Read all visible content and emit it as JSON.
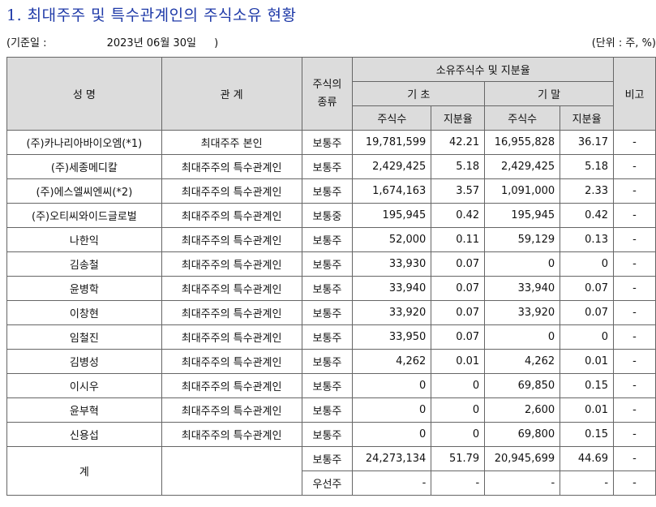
{
  "title": "1. 최대주주 및 특수관계인의 주식소유 현황",
  "base_label": "(기준일 :",
  "base_date": "2023년 06월 30일",
  "base_close": ")",
  "unit": "(단위 : 주, %)",
  "headers": {
    "name": "성 명",
    "relation": "관 계",
    "stock_type": "주식의\n종류",
    "holdings": "소유주식수 및 지분율",
    "begin": "기 초",
    "end": "기 말",
    "shares": "주식수",
    "ratio": "지분율",
    "note": "비고"
  },
  "rows": [
    {
      "name": "(주)카나리아바이오엠(*1)",
      "relation": "최대주주 본인",
      "type": "보통주",
      "b_shares": "19,781,599",
      "b_ratio": "42.21",
      "e_shares": "16,955,828",
      "e_ratio": "36.17",
      "note": "-"
    },
    {
      "name": "(주)세종메디칼",
      "relation": "최대주주의 특수관계인",
      "type": "보통주",
      "b_shares": "2,429,425",
      "b_ratio": "5.18",
      "e_shares": "2,429,425",
      "e_ratio": "5.18",
      "note": "-"
    },
    {
      "name": "(주)에스엘씨엔씨(*2)",
      "relation": "최대주주의 특수관계인",
      "type": "보통주",
      "b_shares": "1,674,163",
      "b_ratio": "3.57",
      "e_shares": "1,091,000",
      "e_ratio": "2.33",
      "note": "-"
    },
    {
      "name": "(주)오티씨와이드글로벌",
      "relation": "최대주주의 특수관계인",
      "type": "보통중",
      "b_shares": "195,945",
      "b_ratio": "0.42",
      "e_shares": "195,945",
      "e_ratio": "0.42",
      "note": "-"
    },
    {
      "name": "나한익",
      "relation": "최대주주의 특수관계인",
      "type": "보통주",
      "b_shares": "52,000",
      "b_ratio": "0.11",
      "e_shares": "59,129",
      "e_ratio": "0.13",
      "note": "-"
    },
    {
      "name": "김송철",
      "relation": "최대주주의 특수관계인",
      "type": "보통주",
      "b_shares": "33,930",
      "b_ratio": "0.07",
      "e_shares": "0",
      "e_ratio": "0",
      "note": "-"
    },
    {
      "name": "윤병학",
      "relation": "최대주주의 특수관계인",
      "type": "보통주",
      "b_shares": "33,940",
      "b_ratio": "0.07",
      "e_shares": "33,940",
      "e_ratio": "0.07",
      "note": "-"
    },
    {
      "name": "이창현",
      "relation": "최대주주의 특수관계인",
      "type": "보통주",
      "b_shares": "33,920",
      "b_ratio": "0.07",
      "e_shares": "33,920",
      "e_ratio": "0.07",
      "note": "-"
    },
    {
      "name": "임철진",
      "relation": "최대주주의 특수관계인",
      "type": "보통주",
      "b_shares": "33,950",
      "b_ratio": "0.07",
      "e_shares": "0",
      "e_ratio": "0",
      "note": "-"
    },
    {
      "name": "김병성",
      "relation": "최대주주의 특수관계인",
      "type": "보통주",
      "b_shares": "4,262",
      "b_ratio": "0.01",
      "e_shares": "4,262",
      "e_ratio": "0.01",
      "note": "-"
    },
    {
      "name": "이시우",
      "relation": "최대주주의 특수관계인",
      "type": "보통주",
      "b_shares": "0",
      "b_ratio": "0",
      "e_shares": "69,850",
      "e_ratio": "0.15",
      "note": "-"
    },
    {
      "name": "윤부혁",
      "relation": "최대주주의 특수관계인",
      "type": "보통주",
      "b_shares": "0",
      "b_ratio": "0",
      "e_shares": "2,600",
      "e_ratio": "0.01",
      "note": "-"
    },
    {
      "name": "신용섭",
      "relation": "최대주주의 특수관계인",
      "type": "보통주",
      "b_shares": "0",
      "b_ratio": "0",
      "e_shares": "69,800",
      "e_ratio": "0.15",
      "note": "-"
    }
  ],
  "total": {
    "label": "계",
    "rows": [
      {
        "type": "보통주",
        "b_shares": "24,273,134",
        "b_ratio": "51.79",
        "e_shares": "20,945,699",
        "e_ratio": "44.69",
        "note": "-"
      },
      {
        "type": "우선주",
        "b_shares": "-",
        "b_ratio": "-",
        "e_shares": "-",
        "e_ratio": "-",
        "note": "-"
      }
    ]
  }
}
